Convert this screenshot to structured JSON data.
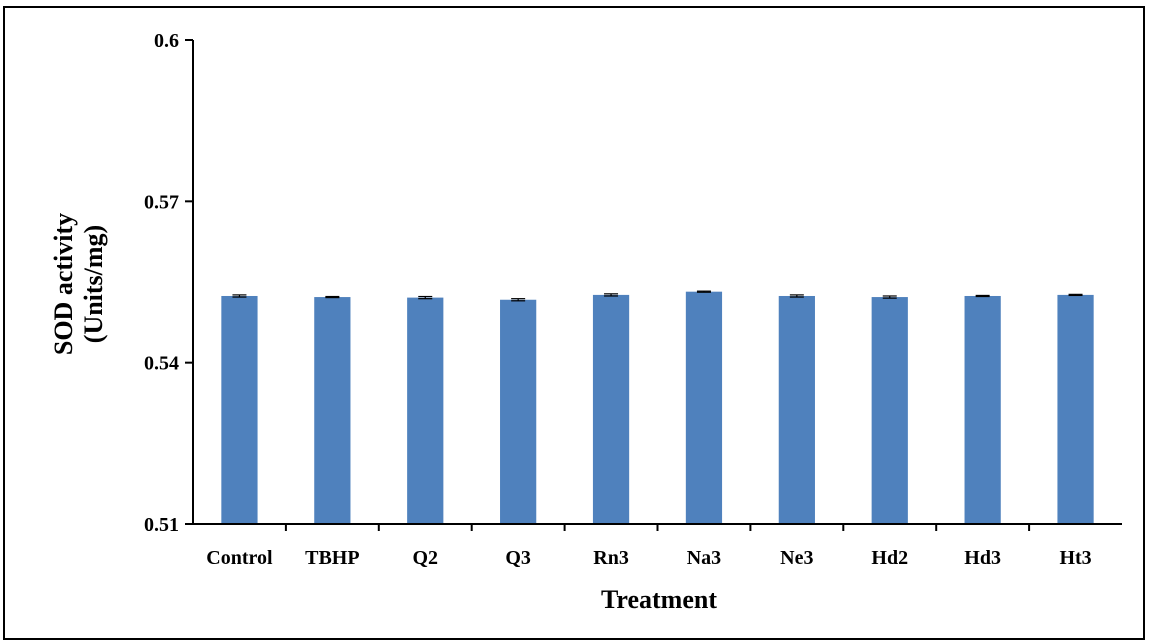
{
  "chart_data": {
    "type": "bar",
    "title": "",
    "xlabel": "Treatment",
    "ylabel": [
      "SOD activity",
      "(Units/mg)"
    ],
    "categories": [
      "Control",
      "TBHP",
      "Q2",
      "Q3",
      "Rn3",
      "Na3",
      "Ne3",
      "Hd2",
      "Hd3",
      "Ht3"
    ],
    "values": [
      0.5524,
      0.5522,
      0.5521,
      0.5517,
      0.5526,
      0.5532,
      0.5524,
      0.5522,
      0.5524,
      0.5526
    ],
    "errors": [
      0.0002,
      0.0001,
      0.0002,
      0.0002,
      0.0002,
      0.0001,
      0.0002,
      0.0002,
      0.0001,
      0.0001
    ],
    "ylim": [
      0.51,
      0.6
    ],
    "yticks": [
      "0.51",
      "0.54",
      "0.57",
      "0.6"
    ],
    "grid": false,
    "legend": "none",
    "bar_color": "#4f81bd"
  }
}
